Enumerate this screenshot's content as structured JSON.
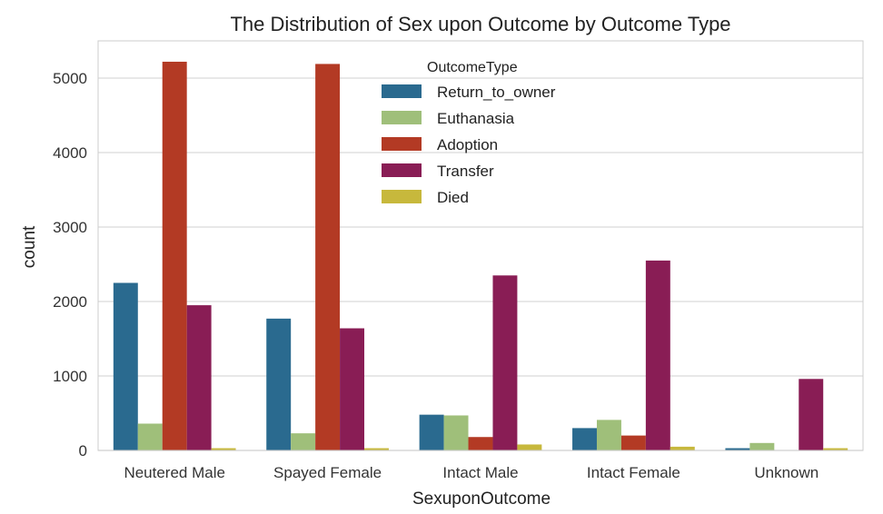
{
  "chart_data": {
    "type": "bar",
    "title": "The Distribution of Sex upon Outcome by Outcome Type",
    "xlabel": "SexuponOutcome",
    "ylabel": "count",
    "ylim": [
      0,
      5500
    ],
    "yticks": [
      "0",
      "1000",
      "2000",
      "3000",
      "4000",
      "5000"
    ],
    "grid": true,
    "legend_title": "OutcomeType",
    "legend_position": "upper-center",
    "categories": [
      "Neutered Male",
      "Spayed Female",
      "Intact Male",
      "Intact Female",
      "Unknown"
    ],
    "series": [
      {
        "name": "Return_to_owner",
        "color": "#2a6a8f",
        "values": [
          2250,
          1770,
          480,
          300,
          30
        ]
      },
      {
        "name": "Euthanasia",
        "color": "#9fbf7a",
        "values": [
          360,
          230,
          470,
          410,
          100
        ]
      },
      {
        "name": "Adoption",
        "color": "#b33a24",
        "values": [
          5220,
          5190,
          180,
          200,
          0
        ]
      },
      {
        "name": "Transfer",
        "color": "#891d55",
        "values": [
          1950,
          1640,
          2350,
          2550,
          960
        ]
      },
      {
        "name": "Died",
        "color": "#c7b83c",
        "values": [
          30,
          30,
          80,
          50,
          30
        ]
      }
    ]
  }
}
